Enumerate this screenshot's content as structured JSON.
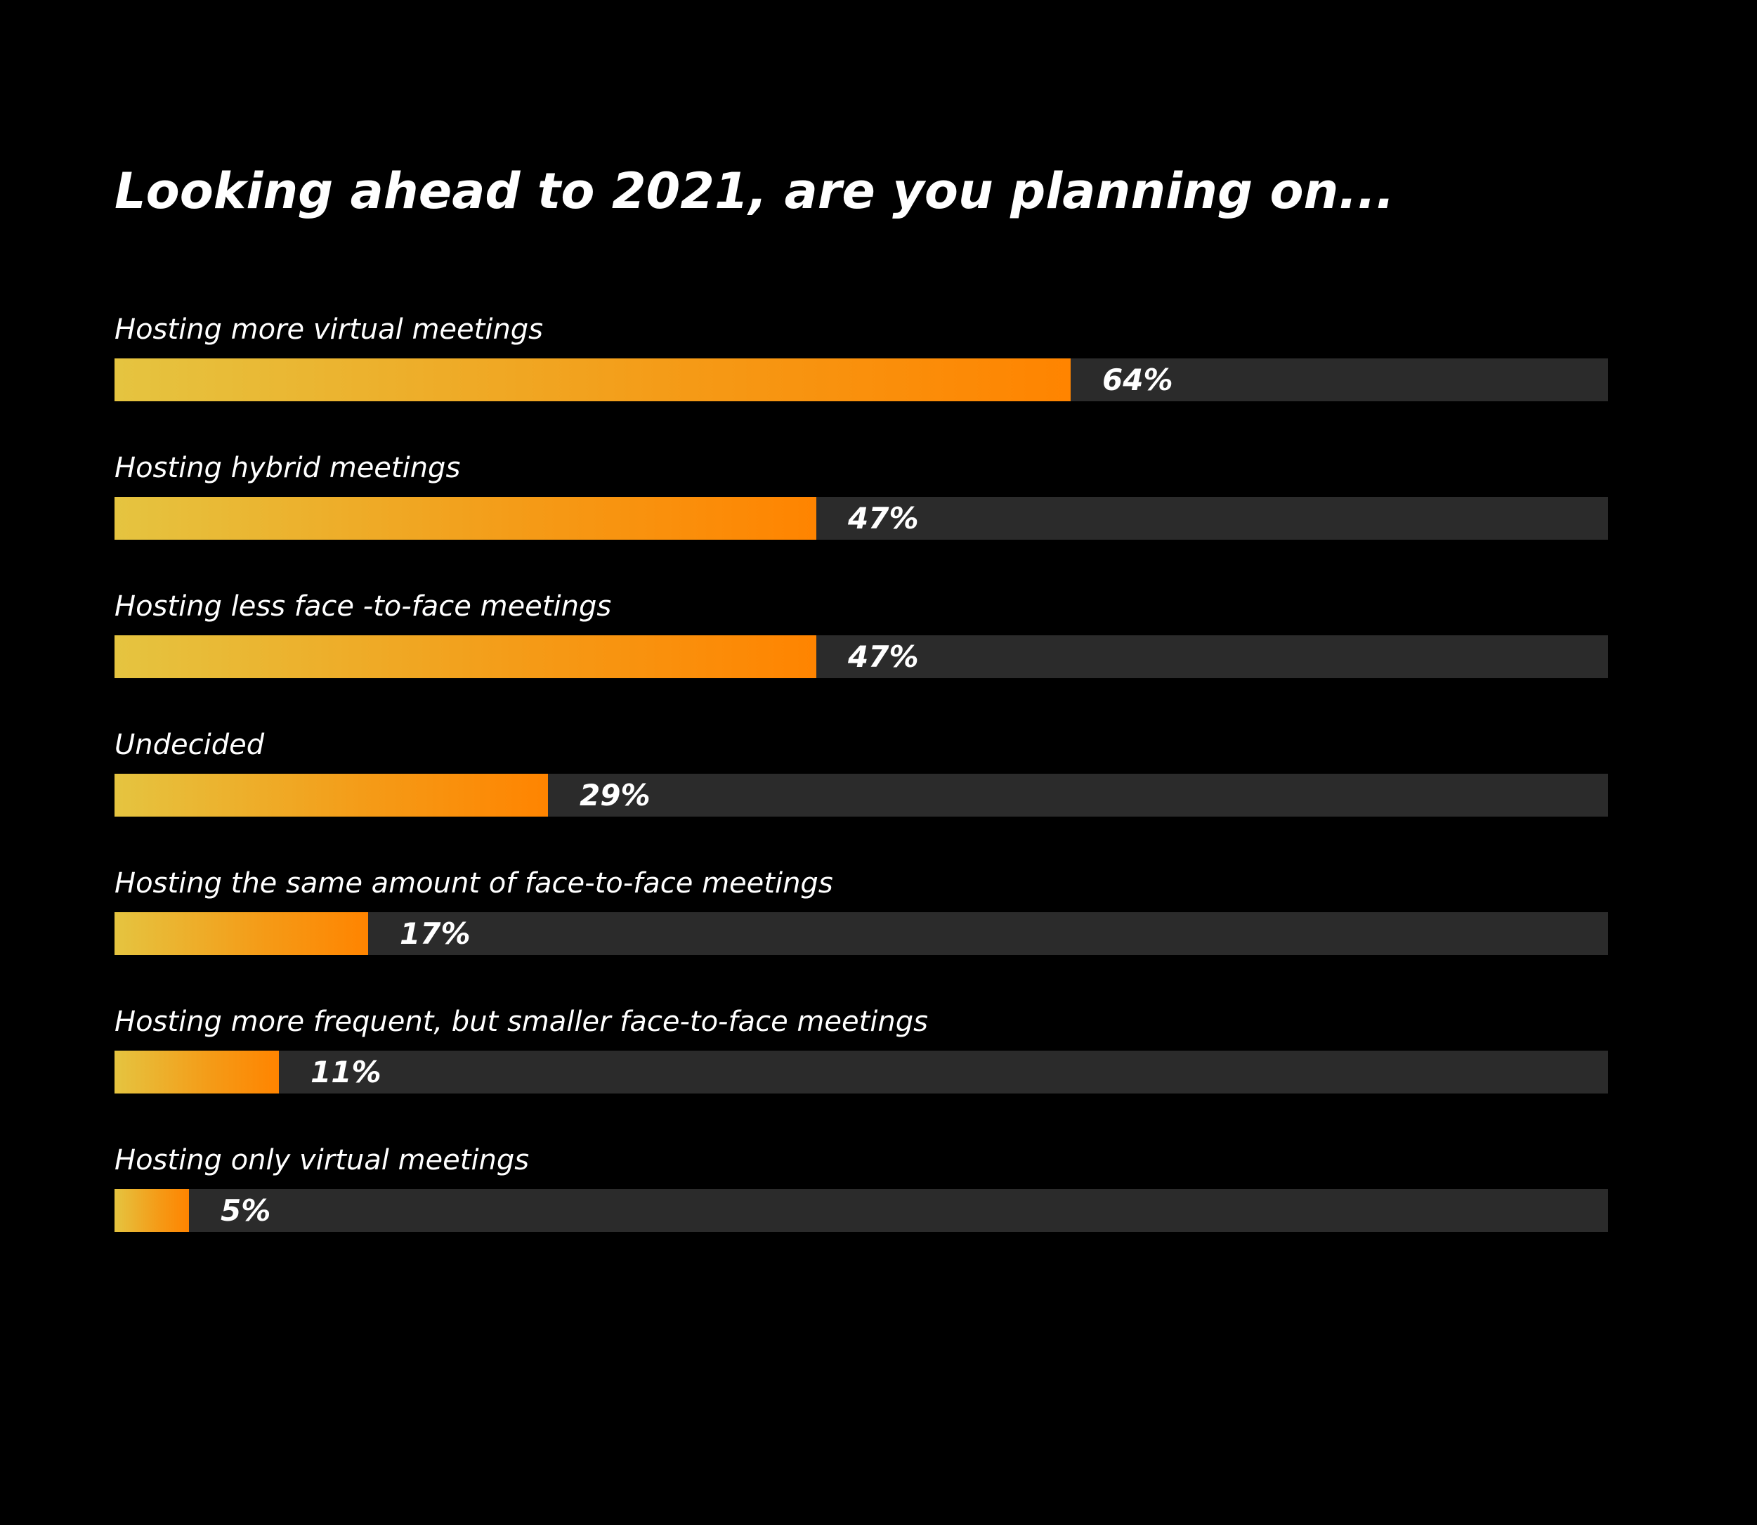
{
  "chart_data": {
    "type": "bar",
    "orientation": "horizontal",
    "title": "Looking ahead to 2021, are you planning on...",
    "categories": [
      "Hosting more virtual meetings",
      "Hosting hybrid meetings",
      "Hosting less face -to-face meetings",
      "Undecided",
      "Hosting the same amount of face-to-face meetings",
      "Hosting more frequent, but smaller face-to-face meetings",
      "Hosting only virtual meetings"
    ],
    "values": [
      64,
      47,
      47,
      29,
      17,
      11,
      5
    ],
    "value_labels": [
      "64%",
      "47%",
      "47%",
      "29%",
      "17%",
      "11%",
      "5%"
    ],
    "xlim": [
      0,
      100
    ],
    "grid": false,
    "colors": {
      "background": "#000000",
      "track": "#2b2b2b",
      "bar_start": "#e5c440",
      "bar_end": "#ff8400",
      "text": "#ffffff"
    }
  }
}
